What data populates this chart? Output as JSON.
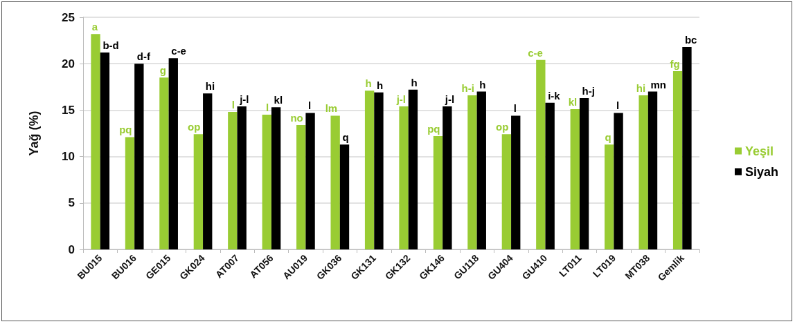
{
  "chart_data": {
    "type": "bar",
    "ylabel": "Yağ (%)",
    "categories": [
      "BU015",
      "BU016",
      "GE015",
      "GK024",
      "AT007",
      "AT056",
      "AU019",
      "GK036",
      "GK131",
      "GK132",
      "GK146",
      "GU118",
      "GU404",
      "GU410",
      "LT011",
      "LT019",
      "MT038",
      "Gemlik"
    ],
    "series": [
      {
        "name": "Yeşil",
        "color": "#99cc33",
        "values": [
          23.2,
          12.1,
          18.5,
          12.4,
          14.8,
          14.5,
          13.4,
          14.4,
          17.1,
          15.4,
          12.2,
          16.6,
          12.4,
          20.4,
          15.1,
          11.3,
          16.6,
          19.2
        ],
        "value_labels": [
          "a",
          "pq",
          "g",
          "op",
          "l",
          "l",
          "no",
          "lm",
          "h",
          "j-l",
          "pq",
          "h-i",
          "op",
          "c-e",
          "kl",
          "q",
          "hi",
          "fg"
        ]
      },
      {
        "name": "Siyah",
        "color": "#000000",
        "values": [
          21.2,
          20.0,
          20.6,
          16.8,
          15.4,
          15.3,
          14.7,
          11.3,
          16.9,
          17.2,
          15.4,
          17.0,
          14.4,
          15.8,
          16.3,
          14.7,
          17.0,
          21.8
        ],
        "value_labels": [
          "b-d",
          "d-f",
          "c-e",
          "hi",
          "j-l",
          "kl",
          "l",
          "q",
          "h",
          "h",
          "j-l",
          "h",
          "l",
          "i-k",
          "h-j",
          "l",
          "mn",
          "bc"
        ]
      }
    ],
    "ylim": [
      0,
      25
    ],
    "yticks": [
      0,
      5,
      10,
      15,
      20,
      25
    ],
    "grid": "y",
    "legend": "right"
  }
}
